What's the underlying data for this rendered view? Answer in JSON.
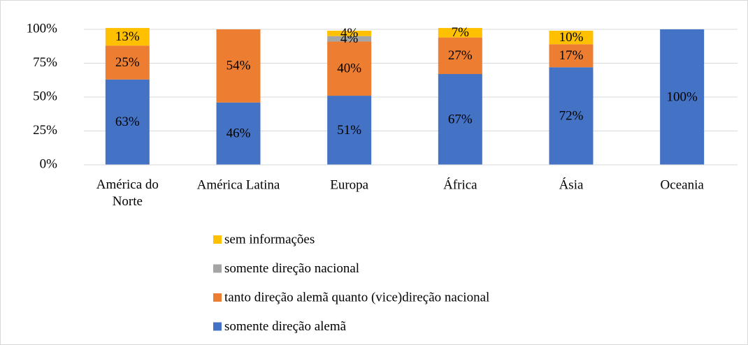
{
  "chart_data": {
    "type": "stacked_bar",
    "categories": [
      "América do Norte",
      "América Latina",
      "Europa",
      "África",
      "Ásia",
      "Oceania"
    ],
    "series": [
      {
        "name": "somente direção alemã",
        "color": "#4472c4",
        "values": [
          63,
          46,
          51,
          67,
          72,
          100
        ],
        "value_labels": [
          "63%",
          "46%",
          "51%",
          "67%",
          "72%",
          "100%"
        ]
      },
      {
        "name": "tanto direção alemã quanto (vice)direção nacional",
        "color": "#ed7d31",
        "values": [
          25,
          54,
          40,
          27,
          17,
          null
        ],
        "value_labels": [
          "25%",
          "54%",
          "40%",
          "27%",
          "17%",
          null
        ]
      },
      {
        "name": "somente direção nacional",
        "color": "#a5a5a5",
        "values": [
          null,
          null,
          4,
          null,
          null,
          null
        ],
        "value_labels": [
          null,
          null,
          "4%",
          null,
          null,
          null
        ]
      },
      {
        "name": "sem informações",
        "color": "#ffc000",
        "values": [
          13,
          null,
          4,
          7,
          10,
          null
        ],
        "value_labels": [
          "13%",
          null,
          "4%",
          "7%",
          "10%",
          null
        ]
      }
    ],
    "ylim": [
      0,
      100
    ],
    "yticks": [
      {
        "value": 0,
        "label": "0%"
      },
      {
        "value": 25,
        "label": "25%"
      },
      {
        "value": 50,
        "label": "50%"
      },
      {
        "value": 75,
        "label": "75%"
      },
      {
        "value": 100,
        "label": "100%"
      }
    ],
    "grid": true,
    "legend": "bottom"
  }
}
